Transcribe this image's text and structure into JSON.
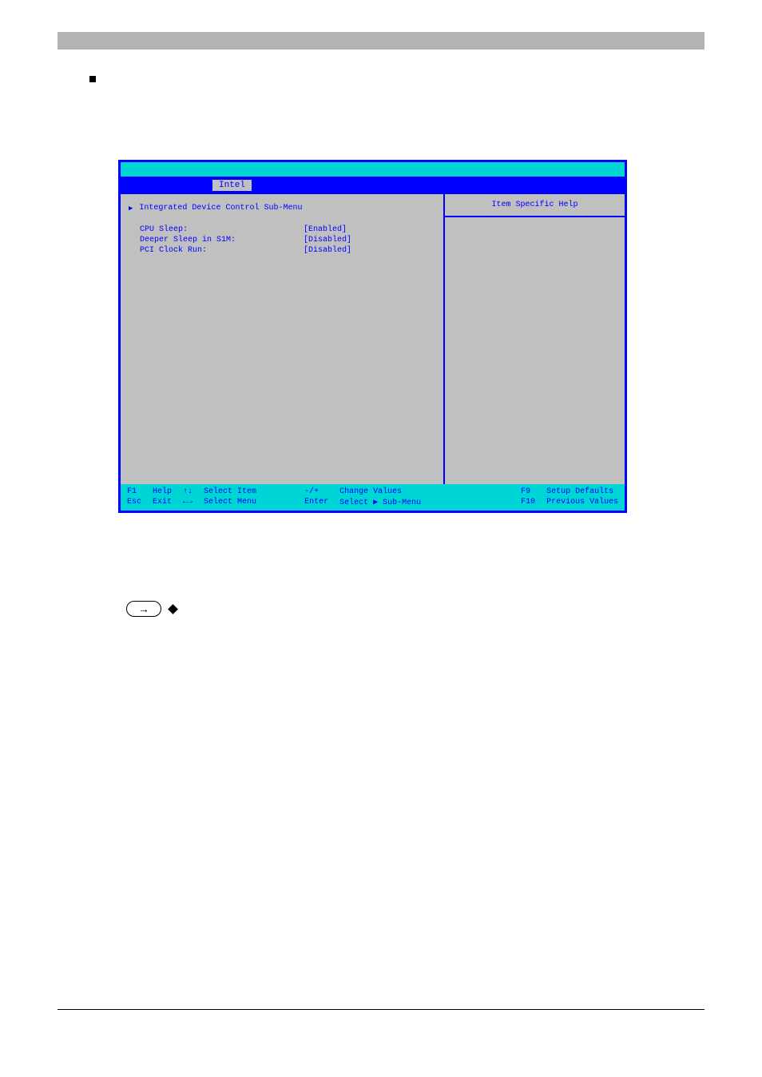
{
  "bios": {
    "menubar": {
      "active_tab": "Intel"
    },
    "main": {
      "submenu_label": "Integrated Device Control Sub-Menu",
      "settings": [
        {
          "label": "CPU Sleep:",
          "value": "[Enabled]"
        },
        {
          "label": "Deeper Sleep in S1M:",
          "value": "[Disabled]"
        },
        {
          "label": "PCI Clock Run:",
          "value": "[Disabled]"
        }
      ]
    },
    "help": {
      "title": "Item Specific Help"
    },
    "footer": {
      "col1": {
        "k1": "F1",
        "k2": "Esc",
        "l1": "Help",
        "l2": "Exit"
      },
      "col2": {
        "k1": "↑↓",
        "k2": "←→",
        "l1": "Select Item",
        "l2": "Select Menu"
      },
      "col3": {
        "k1": "-/+",
        "k2": "Enter",
        "l1": "Change Values",
        "l2": "Select ▶ Sub-Menu"
      },
      "col4": {
        "k1": "F9",
        "k2": "F10",
        "l1": "Setup Defaults",
        "l2": "Previous Values"
      }
    }
  },
  "colors": {
    "bios_blue": "#0000ff",
    "bios_cyan": "#00d5d5",
    "bios_gray": "#c0c0c0",
    "page_gray": "#b3b3b3"
  }
}
